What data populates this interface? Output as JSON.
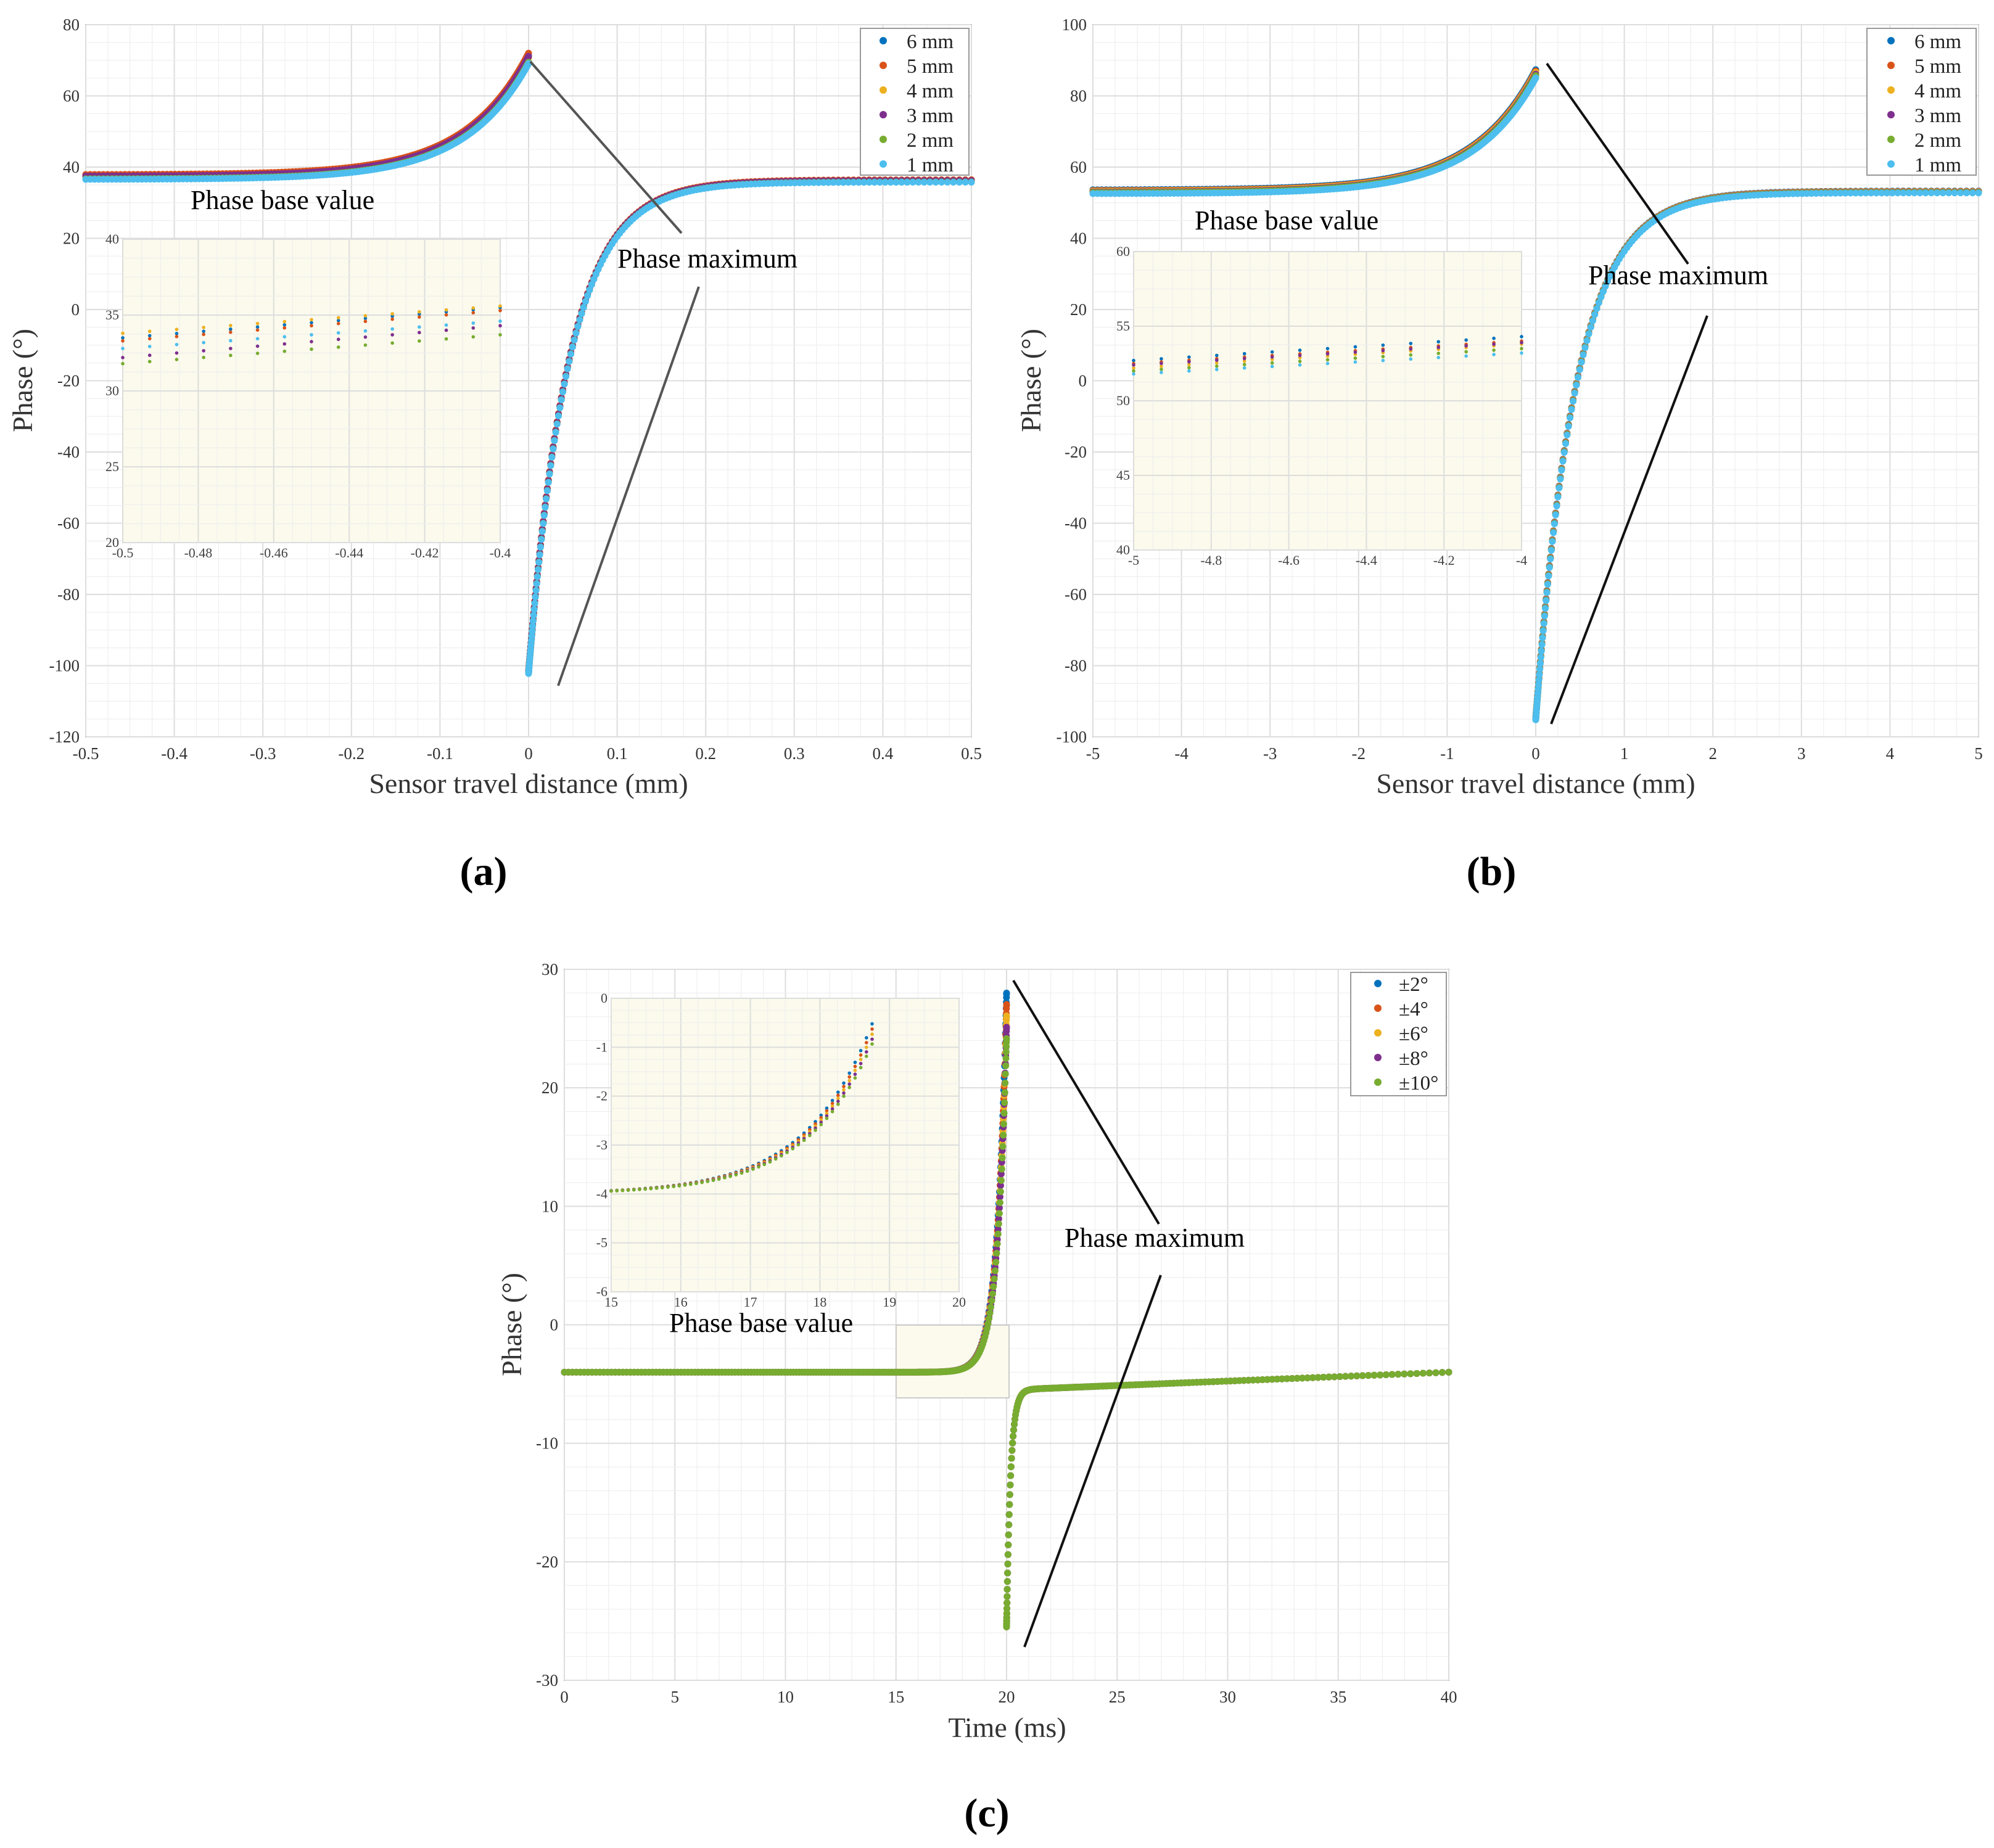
{
  "colors": {
    "series": [
      "#0072BD",
      "#D95319",
      "#EDB120",
      "#7E2F8E",
      "#77AC30",
      "#4DBEEE"
    ],
    "inset_bg": "#fbfaec",
    "grid": "#e6e6e6"
  },
  "chart_data": [
    {
      "id": "a",
      "type": "scatter",
      "panel_label": "(a)",
      "xlabel": "Sensor travel distance (mm)",
      "ylabel": "Phase (°)",
      "xlim": [
        -0.5,
        0.5
      ],
      "ylim": [
        -120,
        80
      ],
      "xticks": [
        -0.5,
        -0.4,
        -0.3,
        -0.2,
        -0.1,
        0,
        0.1,
        0.2,
        0.3,
        0.4,
        0.5
      ],
      "yticks": [
        -120,
        -100,
        -80,
        -60,
        -40,
        -20,
        0,
        20,
        40,
        60,
        80
      ],
      "xtick_labels": [
        "-0.5",
        "-0.4",
        "-0.3",
        "-0.2",
        "-0.1",
        "0",
        "0.1",
        "0.2",
        "0.3",
        "0.4",
        "0.5"
      ],
      "ytick_labels": [
        "-120",
        "-100",
        "-80",
        "-60",
        "-40",
        "-20",
        "0",
        "20",
        "40",
        "60",
        "80"
      ],
      "legend": [
        "6 mm",
        "5 mm",
        "4 mm",
        "3 mm",
        "2 mm",
        "1 mm"
      ],
      "legend_position": "top-right",
      "annotations": [
        "Phase base value",
        "Phase maximum"
      ],
      "curve": {
        "base": 37,
        "peak_x": 0,
        "peak": 73,
        "min": -102,
        "steady": 36
      },
      "series_offsets": [
        1.0,
        1.5,
        0.5,
        0.8,
        -0.5,
        -0.8
      ],
      "inset": {
        "xlim": [
          -0.5,
          -0.4
        ],
        "ylim": [
          20,
          40
        ],
        "xticks": [
          -0.5,
          -0.48,
          -0.46,
          -0.44,
          -0.42,
          -0.4
        ],
        "yticks": [
          20,
          25,
          30,
          35,
          40
        ],
        "xtick_labels": [
          "-0.5",
          "-0.48",
          "-0.46",
          "-0.44",
          "-0.42",
          "-0.4"
        ],
        "ytick_labels": [
          "20",
          "25",
          "30",
          "35",
          "40"
        ],
        "lines": [
          [
            33.5,
            35.5
          ],
          [
            33.3,
            35.3
          ],
          [
            33.8,
            35.6
          ],
          [
            32.2,
            34.3
          ],
          [
            31.8,
            33.7
          ],
          [
            32.8,
            34.6
          ]
        ]
      }
    },
    {
      "id": "b",
      "type": "scatter",
      "panel_label": "(b)",
      "xlabel": "Sensor travel distance (mm)",
      "ylabel": "Phase (°)",
      "xlim": [
        -5,
        5
      ],
      "ylim": [
        -100,
        100
      ],
      "xticks": [
        -5,
        -4,
        -3,
        -2,
        -1,
        0,
        1,
        2,
        3,
        4,
        5
      ],
      "yticks": [
        -100,
        -80,
        -60,
        -40,
        -20,
        0,
        20,
        40,
        60,
        80,
        100
      ],
      "xtick_labels": [
        "-5",
        "-4",
        "-3",
        "-2",
        "-1",
        "0",
        "1",
        "2",
        "3",
        "4",
        "5"
      ],
      "ytick_labels": [
        "-100",
        "-80",
        "-60",
        "-40",
        "-20",
        "0",
        "20",
        "40",
        "60",
        "80",
        "100"
      ],
      "legend": [
        "6 mm",
        "5 mm",
        "4 mm",
        "3 mm",
        "2 mm",
        "1 mm"
      ],
      "legend_position": "top-right",
      "annotations": [
        "Phase base value",
        "Phase maximum"
      ],
      "curve": {
        "base": 53,
        "peak_x": 0,
        "peak": 89,
        "min": -95,
        "steady": 53
      },
      "series_offsets": [
        1.0,
        0.7,
        0.4,
        0.0,
        -0.3,
        -0.8
      ],
      "inset": {
        "xlim": [
          -5,
          -4
        ],
        "ylim": [
          40,
          60
        ],
        "xticks": [
          -5,
          -4.8,
          -4.6,
          -4.4,
          -4.2,
          -4
        ],
        "yticks": [
          40,
          45,
          50,
          55,
          60
        ],
        "xtick_labels": [
          "-5",
          "-4.8",
          "-4.6",
          "-4.4",
          "-4.2",
          "-4"
        ],
        "ytick_labels": [
          "40",
          "45",
          "50",
          "55",
          "60"
        ],
        "lines": [
          [
            52.7,
            54.3
          ],
          [
            52.5,
            54.0
          ],
          [
            52.2,
            53.8
          ],
          [
            52.4,
            53.9
          ],
          [
            52.0,
            53.5
          ],
          [
            51.8,
            53.2
          ]
        ]
      }
    },
    {
      "id": "c",
      "type": "scatter",
      "panel_label": "(c)",
      "xlabel": "Time (ms)",
      "ylabel": "Phase (°)",
      "xlim": [
        0,
        40
      ],
      "ylim": [
        -30,
        30
      ],
      "xticks": [
        0,
        5,
        10,
        15,
        20,
        25,
        30,
        35,
        40
      ],
      "yticks": [
        -30,
        -20,
        -10,
        0,
        10,
        20,
        30
      ],
      "xtick_labels": [
        "0",
        "5",
        "10",
        "15",
        "20",
        "25",
        "30",
        "35",
        "40"
      ],
      "ytick_labels": [
        "-30",
        "-20",
        "-10",
        "0",
        "10",
        "20",
        "30"
      ],
      "legend": [
        "±2°",
        "±4°",
        "±6°",
        "±8°",
        "±10°"
      ],
      "legend_position": "top-right",
      "annotations": [
        "Phase base value",
        "Phase maximum"
      ],
      "curve": {
        "base": -4,
        "peak_x": 20,
        "peak": 29.5,
        "min": -25.5,
        "steady": -5.5,
        "end": -4
      },
      "inset": {
        "xlim": [
          15,
          20
        ],
        "ylim": [
          -6,
          0
        ],
        "xticks": [
          15,
          16,
          17,
          18,
          19,
          20
        ],
        "yticks": [
          -6,
          -5,
          -4,
          -3,
          -2,
          -1,
          0
        ],
        "xtick_labels": [
          "15",
          "16",
          "17",
          "18",
          "19",
          "20"
        ],
        "ytick_labels": [
          "-6",
          "-5",
          "-4",
          "-3",
          "-2",
          "-1",
          "0"
        ]
      }
    }
  ]
}
